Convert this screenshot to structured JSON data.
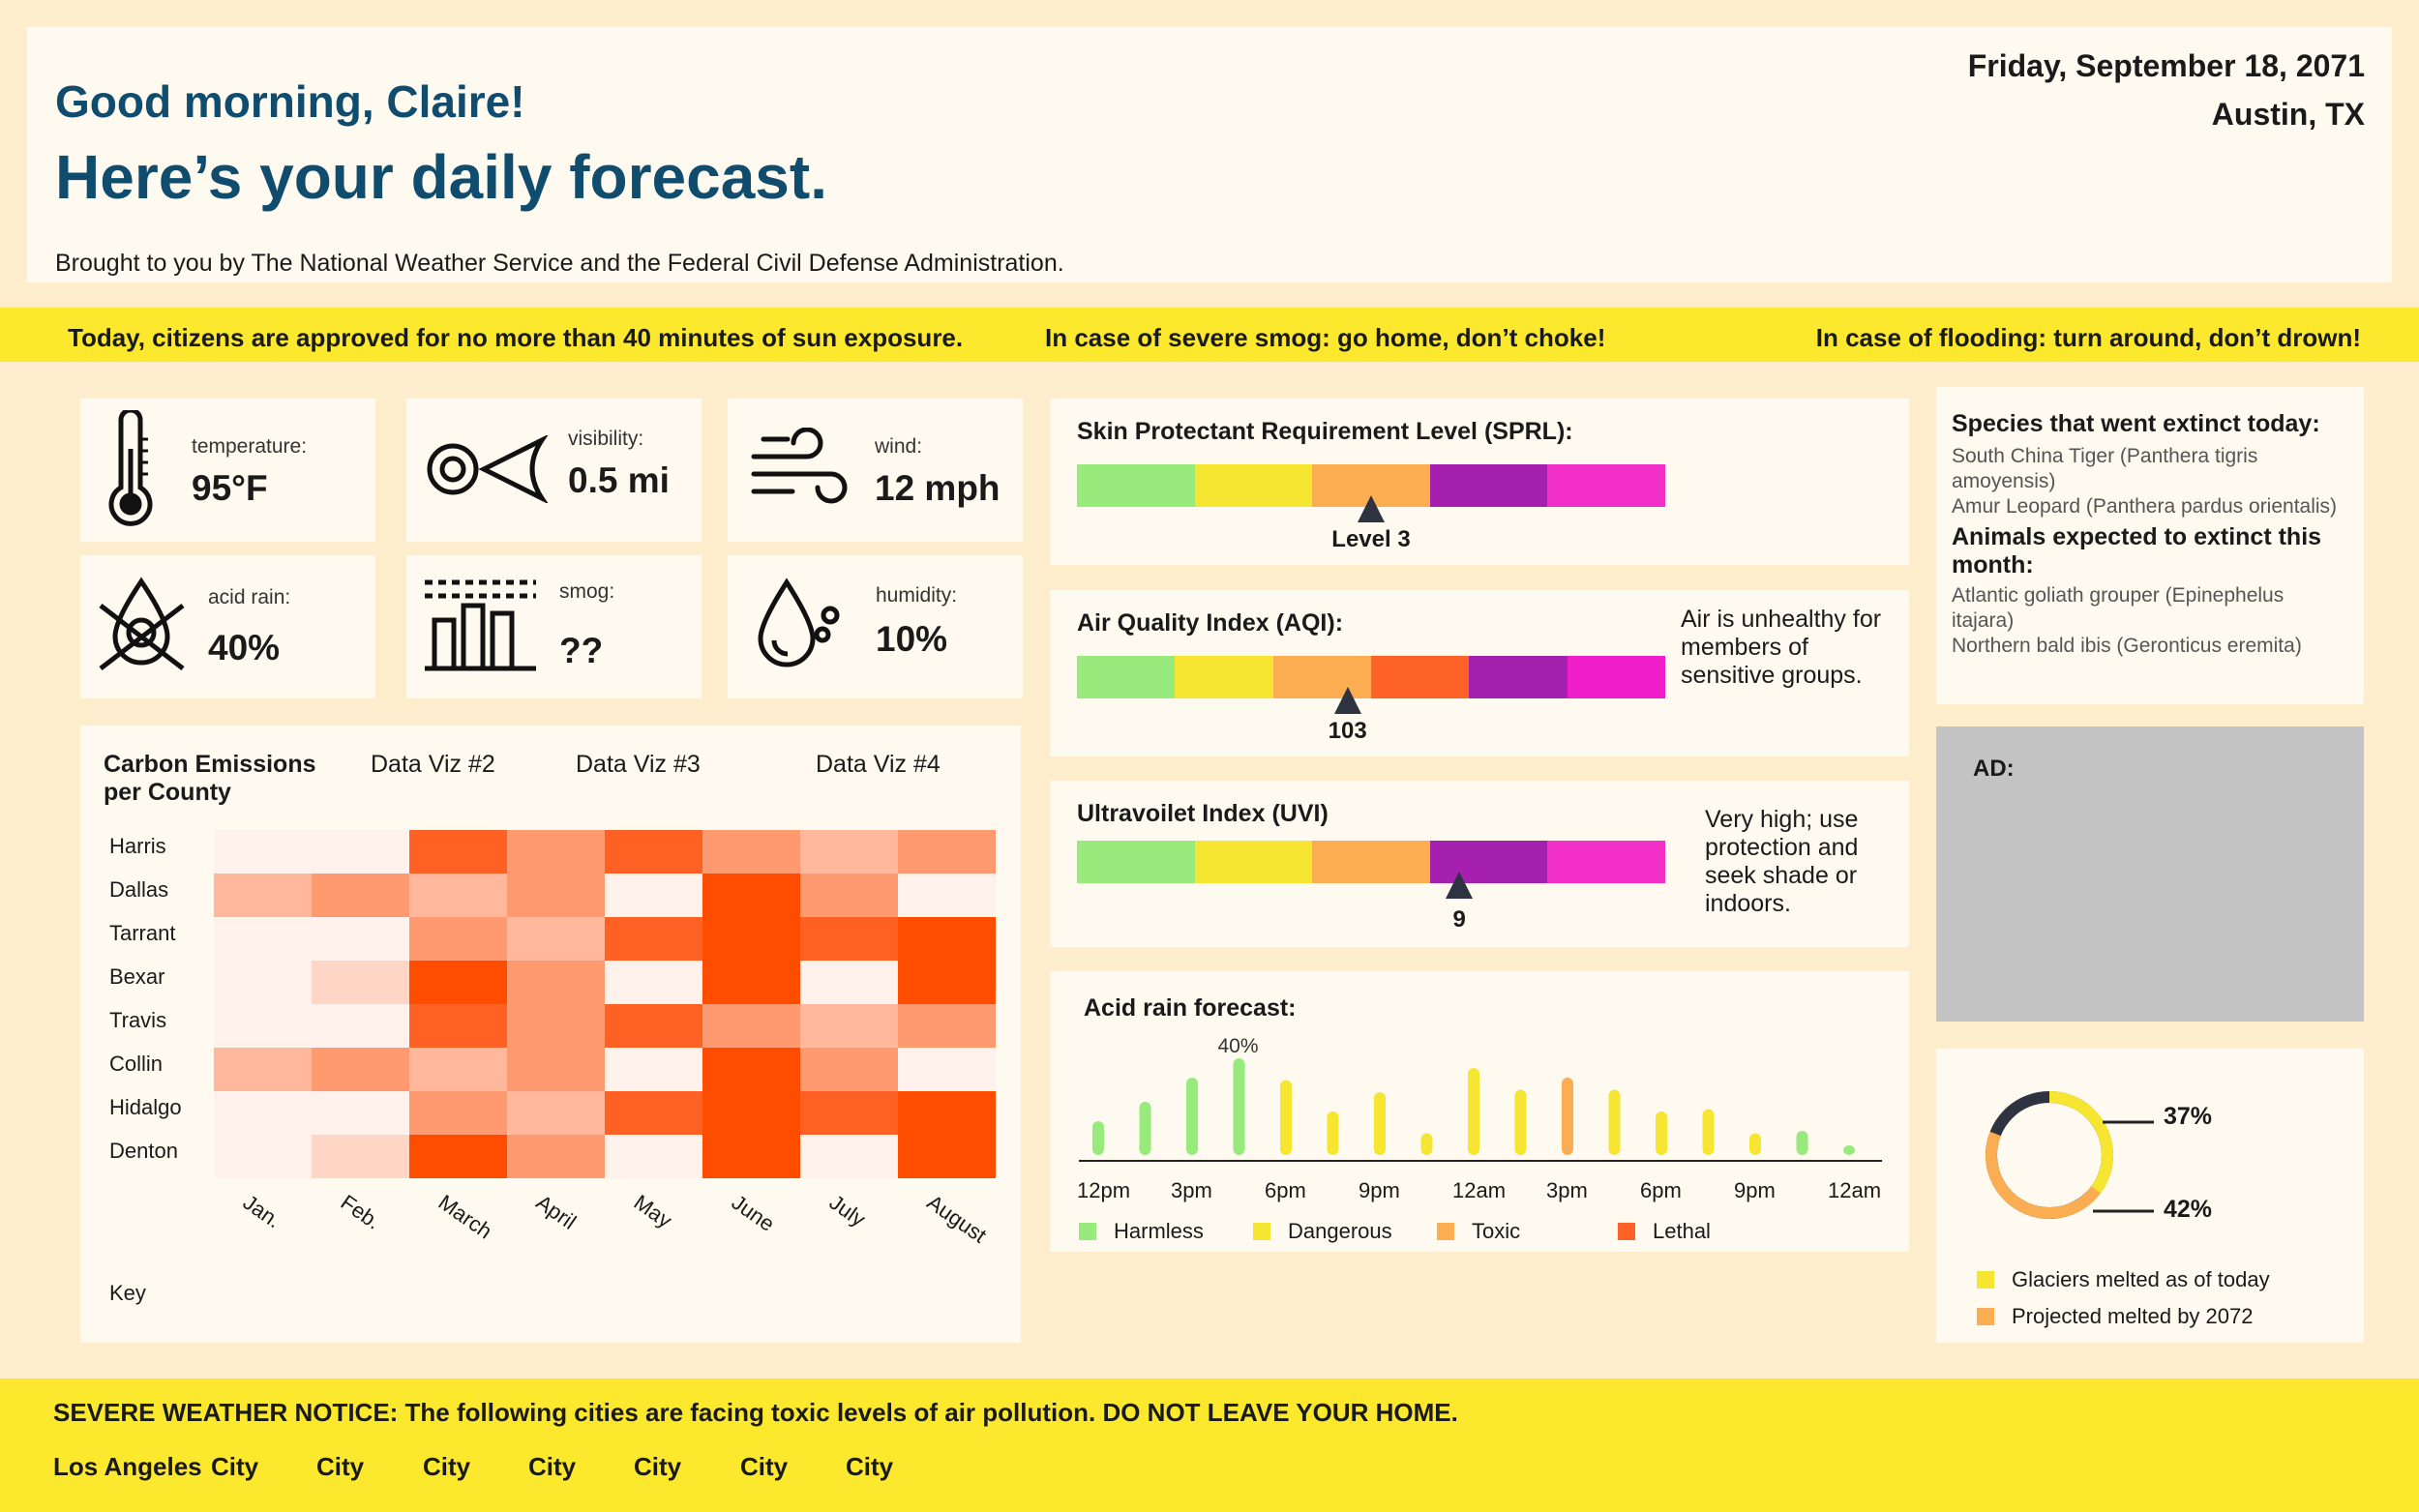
{
  "header": {
    "greeting": "Good morning, Claire!",
    "headline": "Here’s your daily forecast.",
    "brought_by": "Brought to you by The National Weather Service and the Federal Civil Defense Administration.",
    "date": "Friday, September 18, 2071",
    "location": "Austin, TX"
  },
  "banner": {
    "left": "Today, citizens are approved for no more than 40 minutes of sun exposure.",
    "middle": "In case of severe smog: go home, don’t choke!",
    "right": "In case of flooding: turn around, don’t drown!"
  },
  "stats": {
    "temperature": {
      "label": "temperature:",
      "value": "95°F",
      "icon": "thermometer-icon"
    },
    "visibility": {
      "label": "visibility:",
      "value": "0.5 mi",
      "icon": "eye-icon"
    },
    "wind": {
      "label": "wind:",
      "value": "12 mph",
      "icon": "wind-icon"
    },
    "acid_rain": {
      "label": "acid rain:",
      "value": "40%",
      "icon": "hazard-drop-icon"
    },
    "smog": {
      "label": "smog:",
      "value": "??",
      "icon": "factory-icon"
    },
    "humidity": {
      "label": "humidity:",
      "value": "10%",
      "icon": "droplet-icon"
    }
  },
  "heatmap": {
    "title": "Carbon Emissions per County",
    "tabs": [
      "Data Viz #2",
      "Data Viz #3",
      "Data Viz #4"
    ],
    "key_label": "Key"
  },
  "sprl": {
    "title": "Skin Protectant Requirement Level (SPRL):",
    "level_label": "Level 3",
    "position": 0.5,
    "colors": [
      "#98ea7c",
      "#f7e631",
      "#fcad52",
      "#a620b0",
      "#f230c8"
    ]
  },
  "aqi": {
    "title": "Air Quality Index (AQI):",
    "value_label": "103",
    "position": 0.46,
    "note": "Air is unhealthy for members of sensitive groups.",
    "colors": [
      "#98ea7c",
      "#f7e631",
      "#fcad52",
      "#fe6227",
      "#a620b0",
      "#f01ec8"
    ]
  },
  "uvi": {
    "title": "Ultravoilet Index (UVI)",
    "value_label": "9",
    "position": 0.65,
    "note": "Very high; use protection and seek shade or indoors.",
    "colors": [
      "#98ea7c",
      "#f7e631",
      "#fcad52",
      "#a620b0",
      "#f230c8"
    ]
  },
  "acid_forecast": {
    "title": "Acid rain forecast:",
    "peak_label": "40%",
    "time_labels": [
      "12pm",
      "3pm",
      "6pm",
      "9pm",
      "12am",
      "3pm",
      "6pm",
      "9pm",
      "12am"
    ],
    "legend": [
      {
        "label": "Harmless",
        "color": "#98ea7c"
      },
      {
        "label": "Dangerous",
        "color": "#f7e631"
      },
      {
        "label": "Toxic",
        "color": "#fcad52"
      },
      {
        "label": "Lethal",
        "color": "#fe6227"
      }
    ]
  },
  "species": {
    "extinct_title": "Species that went extinct today:",
    "extinct": [
      "South China Tiger (Panthera tigris amoyensis)",
      "Amur Leopard (Panthera pardus orientalis)"
    ],
    "expected_title": "Animals expected to extinct this month:",
    "expected": [
      "Atlantic goliath grouper (Epinephelus itajara)",
      "Northern bald ibis (Geronticus eremita)"
    ]
  },
  "ad": {
    "label": "AD:"
  },
  "glaciers": {
    "today_label": "37%",
    "projected_label": "42%",
    "legend": [
      {
        "label": "Glaciers melted as of today",
        "color": "#f7e631"
      },
      {
        "label": "Projected melted by 2072",
        "color": "#fcad52"
      }
    ]
  },
  "footer": {
    "notice": "SEVERE WEATHER NOTICE: The following cities are facing toxic levels of air pollution. DO NOT LEAVE YOUR HOME.",
    "cities": [
      "Los Angeles",
      "City",
      "City",
      "City",
      "City",
      "City",
      "City",
      "City"
    ]
  },
  "chart_data": [
    {
      "type": "heatmap",
      "title": "Carbon Emissions per County",
      "y": [
        "Harris",
        "Dallas",
        "Tarrant",
        "Bexar",
        "Travis",
        "Collin",
        "Hidalgo",
        "Denton"
      ],
      "x": [
        "Jan.",
        "Feb.",
        "March",
        "April",
        "May",
        "June",
        "July",
        "August"
      ],
      "values": [
        [
          0,
          0,
          4,
          3,
          4,
          3,
          2,
          3
        ],
        [
          2,
          3,
          2,
          3,
          0,
          5,
          3,
          0
        ],
        [
          0,
          0,
          3,
          2,
          4,
          5,
          4,
          5
        ],
        [
          0,
          1,
          5,
          3,
          0,
          5,
          0,
          5
        ],
        [
          0,
          0,
          4,
          3,
          4,
          3,
          2,
          3
        ],
        [
          2,
          3,
          2,
          3,
          0,
          5,
          3,
          0
        ],
        [
          0,
          0,
          3,
          2,
          4,
          5,
          4,
          5
        ],
        [
          0,
          1,
          5,
          3,
          0,
          5,
          0,
          5
        ]
      ],
      "colors": [
        "#fff2ec",
        "#ffd6c6",
        "#ffb89c",
        "#ff9a70",
        "#ff6124",
        "#ff4d00"
      ]
    },
    {
      "type": "bar",
      "title": "Acid rain forecast:",
      "values": [
        14,
        22,
        32,
        40,
        31,
        18,
        26,
        9,
        36,
        27,
        32,
        27,
        18,
        19,
        9,
        10,
        4
      ],
      "categories": [
        "Harmless",
        "Harmless",
        "Harmless",
        "Harmless",
        "Dangerous",
        "Dangerous",
        "Dangerous",
        "Dangerous",
        "Dangerous",
        "Dangerous",
        "Toxic",
        "Dangerous",
        "Dangerous",
        "Dangerous",
        "Dangerous",
        "Harmless",
        "Harmless"
      ],
      "ylim": [
        0,
        40
      ]
    },
    {
      "type": "pie",
      "series": [
        {
          "name": "Glaciers melted as of today",
          "values": [
            37
          ]
        },
        {
          "name": "Projected melted by 2072",
          "values": [
            42
          ]
        }
      ]
    }
  ]
}
